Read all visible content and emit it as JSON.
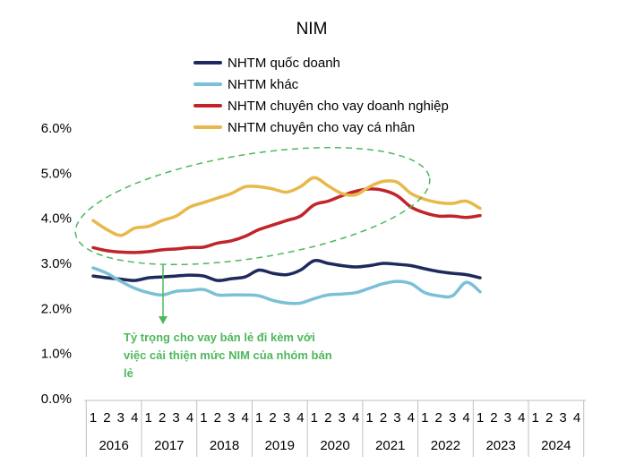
{
  "chart_data": {
    "type": "line",
    "title": "NIM",
    "xlabel": "",
    "ylabel": "",
    "ylim": [
      0,
      6
    ],
    "y_ticks": [
      "0.0%",
      "1.0%",
      "2.0%",
      "3.0%",
      "4.0%",
      "5.0%",
      "6.0%"
    ],
    "grid": false,
    "legend_position": "top",
    "x_quarter_labels": [
      "1",
      "2",
      "3",
      "4",
      "1",
      "2",
      "3",
      "4",
      "1",
      "2",
      "3",
      "4",
      "1",
      "2",
      "3",
      "4",
      "1",
      "2",
      "3",
      "4",
      "1",
      "2",
      "3",
      "4",
      "1",
      "2",
      "3",
      "4",
      "1",
      "2",
      "3",
      "4",
      "1",
      "2",
      "3",
      "4"
    ],
    "x_year_labels": [
      "2016",
      "2017",
      "2018",
      "2019",
      "2020",
      "2021",
      "2022",
      "2023",
      "2024"
    ],
    "series": [
      {
        "name": "NHTM quốc doanh",
        "color": "#1f2a5c",
        "values": [
          2.72,
          2.68,
          2.65,
          2.62,
          2.68,
          2.7,
          2.72,
          2.74,
          2.72,
          2.62,
          2.66,
          2.7,
          2.85,
          2.78,
          2.75,
          2.85,
          3.06,
          3.0,
          2.95,
          2.92,
          2.95,
          3.0,
          2.98,
          2.95,
          2.88,
          2.82,
          2.78,
          2.75,
          2.68
        ]
      },
      {
        "name": "NHTM khác",
        "color": "#7bc0d6",
        "values": [
          2.9,
          2.78,
          2.6,
          2.45,
          2.35,
          2.3,
          2.38,
          2.4,
          2.42,
          2.3,
          2.3,
          2.3,
          2.28,
          2.18,
          2.12,
          2.12,
          2.22,
          2.3,
          2.32,
          2.35,
          2.45,
          2.55,
          2.6,
          2.55,
          2.35,
          2.28,
          2.28,
          2.58,
          2.37
        ]
      },
      {
        "name": "NHTM chuyên cho vay doanh nghiệp",
        "color": "#c0252b",
        "values": [
          3.35,
          3.28,
          3.25,
          3.24,
          3.26,
          3.3,
          3.32,
          3.35,
          3.36,
          3.45,
          3.5,
          3.6,
          3.75,
          3.85,
          3.95,
          4.05,
          4.3,
          4.38,
          4.5,
          4.6,
          4.65,
          4.62,
          4.5,
          4.25,
          4.12,
          4.05,
          4.05,
          4.02,
          4.06
        ]
      },
      {
        "name": "NHTM chuyên cho vay cá nhân",
        "color": "#e8b84a",
        "values": [
          3.95,
          3.75,
          3.62,
          3.78,
          3.82,
          3.95,
          4.05,
          4.25,
          4.35,
          4.45,
          4.55,
          4.7,
          4.7,
          4.65,
          4.58,
          4.7,
          4.9,
          4.72,
          4.55,
          4.52,
          4.7,
          4.82,
          4.8,
          4.55,
          4.42,
          4.35,
          4.33,
          4.38,
          4.22
        ]
      }
    ],
    "annotation": {
      "text_lines": [
        "Tỷ trọng cho vay bán lẻ đi kèm với",
        "việc cải thiện mức NIM của nhóm bán",
        "lẻ"
      ],
      "color": "#4db85a"
    }
  }
}
